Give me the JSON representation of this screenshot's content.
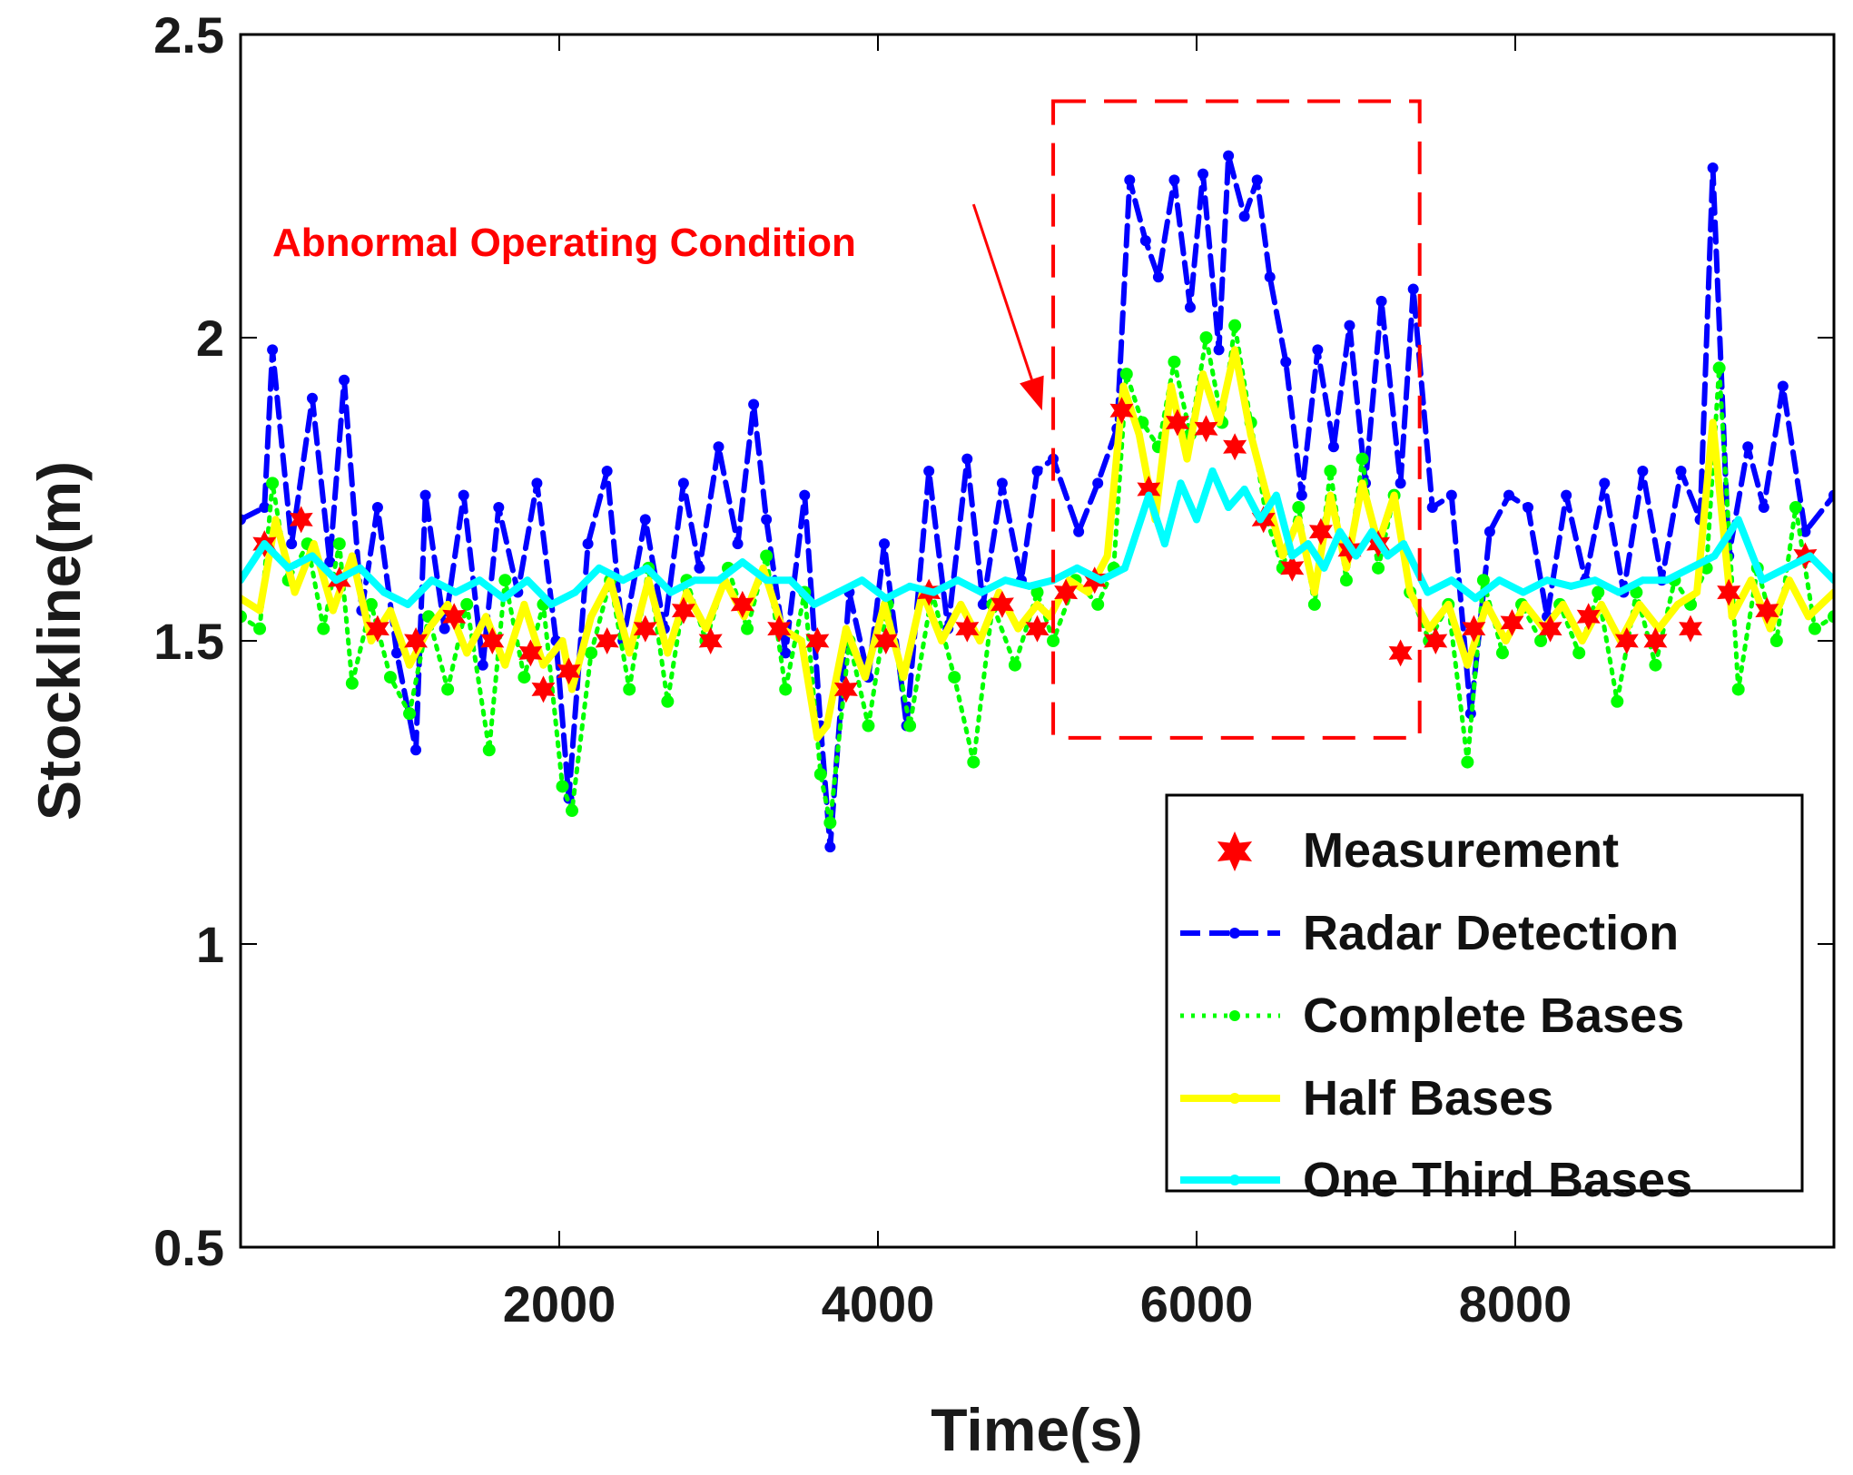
{
  "chart_data": {
    "type": "line",
    "title": "",
    "xlabel": "Time(s)",
    "ylabel": "Stockline(m)",
    "xlim": [
      0,
      10000
    ],
    "ylim": [
      0.5,
      2.5
    ],
    "xticks": [
      2000,
      4000,
      6000,
      8000
    ],
    "xtick_labels": [
      "2000",
      "4000",
      "6000",
      "8000"
    ],
    "yticks": [
      0.5,
      1,
      1.5,
      2,
      2.5
    ],
    "ytick_labels": [
      "0.5",
      "1",
      "1.5",
      "2",
      "2.5"
    ],
    "grid": false,
    "legend_position": "bottom-right",
    "annotation": {
      "text": "Abnormal Operating Condition",
      "color": "#ff0000",
      "box_x_range": [
        5100,
        7400
      ],
      "box_y_range": [
        1.34,
        2.39
      ],
      "arrow_tail": [
        4600,
        2.22
      ],
      "arrow_head": [
        5030,
        1.88
      ]
    },
    "series": [
      {
        "name": "Measurement",
        "color": "#ff0000",
        "style": "star",
        "x": [
          150,
          380,
          620,
          860,
          1100,
          1340,
          1580,
          1820,
          1900,
          2060,
          2300,
          2540,
          2780,
          2950,
          3150,
          3380,
          3620,
          3800,
          4050,
          4320,
          4560,
          4780,
          5000,
          5180,
          5360,
          5530,
          5700,
          5880,
          6060,
          6240,
          6420,
          6600,
          6780,
          6960,
          7140,
          7280,
          7500,
          7740,
          7980,
          8220,
          8460,
          8700,
          8880,
          9100,
          9340,
          9580,
          9820
        ],
        "values": [
          1.66,
          1.7,
          1.6,
          1.52,
          1.5,
          1.54,
          1.5,
          1.48,
          1.42,
          1.45,
          1.5,
          1.52,
          1.55,
          1.5,
          1.56,
          1.52,
          1.5,
          1.42,
          1.5,
          1.58,
          1.52,
          1.56,
          1.52,
          1.58,
          1.6,
          1.88,
          1.75,
          1.86,
          1.85,
          1.82,
          1.7,
          1.62,
          1.68,
          1.65,
          1.66,
          1.48,
          1.5,
          1.52,
          1.53,
          1.52,
          1.54,
          1.5,
          1.5,
          1.52,
          1.58,
          1.55,
          1.64
        ]
      },
      {
        "name": "Radar Detection",
        "color": "#0000ff",
        "style": "dash-dot-marker",
        "x": [
          0,
          150,
          200,
          320,
          450,
          560,
          650,
          760,
          860,
          980,
          1100,
          1160,
          1280,
          1400,
          1520,
          1620,
          1740,
          1860,
          1980,
          2060,
          2180,
          2300,
          2400,
          2540,
          2660,
          2780,
          2880,
          3000,
          3120,
          3220,
          3300,
          3420,
          3540,
          3640,
          3700,
          3820,
          3940,
          4040,
          4180,
          4320,
          4440,
          4560,
          4660,
          4780,
          4900,
          5000,
          5100,
          5260,
          5380,
          5500,
          5580,
          5680,
          5760,
          5860,
          5960,
          6040,
          6140,
          6200,
          6300,
          6380,
          6460,
          6560,
          6660,
          6760,
          6860,
          6960,
          7060,
          7160,
          7280,
          7360,
          7480,
          7600,
          7720,
          7840,
          7960,
          8080,
          8200,
          8320,
          8440,
          8560,
          8680,
          8800,
          8920,
          9040,
          9160,
          9240,
          9340,
          9460,
          9560,
          9680,
          9820,
          10000
        ],
        "values": [
          1.7,
          1.72,
          1.98,
          1.66,
          1.9,
          1.63,
          1.93,
          1.55,
          1.72,
          1.48,
          1.32,
          1.74,
          1.52,
          1.74,
          1.46,
          1.72,
          1.58,
          1.76,
          1.5,
          1.24,
          1.66,
          1.78,
          1.5,
          1.7,
          1.52,
          1.76,
          1.62,
          1.82,
          1.66,
          1.89,
          1.7,
          1.48,
          1.74,
          1.36,
          1.16,
          1.58,
          1.44,
          1.66,
          1.36,
          1.78,
          1.52,
          1.8,
          1.56,
          1.76,
          1.6,
          1.78,
          1.8,
          1.68,
          1.76,
          1.85,
          2.26,
          2.16,
          2.1,
          2.26,
          2.05,
          2.27,
          1.98,
          2.3,
          2.2,
          2.26,
          2.1,
          1.96,
          1.74,
          1.98,
          1.82,
          2.02,
          1.76,
          2.06,
          1.76,
          2.08,
          1.72,
          1.74,
          1.38,
          1.68,
          1.74,
          1.72,
          1.54,
          1.74,
          1.6,
          1.76,
          1.58,
          1.78,
          1.6,
          1.78,
          1.7,
          2.28,
          1.64,
          1.82,
          1.72,
          1.92,
          1.68,
          1.74
        ]
      },
      {
        "name": "Complete Bases",
        "color": "#00ff00",
        "style": "dotted-marker",
        "x": [
          0,
          120,
          200,
          300,
          420,
          520,
          620,
          700,
          820,
          940,
          1060,
          1180,
          1300,
          1420,
          1560,
          1660,
          1780,
          1900,
          2020,
          2080,
          2200,
          2320,
          2440,
          2560,
          2680,
          2800,
          2920,
          3060,
          3180,
          3300,
          3420,
          3540,
          3640,
          3700,
          3820,
          3940,
          4060,
          4200,
          4340,
          4480,
          4600,
          4720,
          4860,
          5000,
          5100,
          5240,
          5380,
          5480,
          5560,
          5660,
          5760,
          5860,
          5960,
          6060,
          6160,
          6240,
          6340,
          6440,
          6540,
          6640,
          6740,
          6840,
          6940,
          7040,
          7140,
          7240,
          7340,
          7460,
          7580,
          7700,
          7800,
          7920,
          8040,
          8160,
          8280,
          8400,
          8520,
          8640,
          8760,
          8880,
          9000,
          9100,
          9200,
          9280,
          9400,
          9520,
          9640,
          9760,
          9880,
          10000
        ],
        "values": [
          1.54,
          1.52,
          1.76,
          1.6,
          1.66,
          1.52,
          1.66,
          1.43,
          1.56,
          1.44,
          1.38,
          1.54,
          1.42,
          1.56,
          1.32,
          1.6,
          1.44,
          1.56,
          1.26,
          1.22,
          1.48,
          1.6,
          1.42,
          1.62,
          1.4,
          1.6,
          1.5,
          1.62,
          1.52,
          1.64,
          1.42,
          1.58,
          1.28,
          1.2,
          1.5,
          1.36,
          1.56,
          1.36,
          1.58,
          1.44,
          1.3,
          1.56,
          1.46,
          1.58,
          1.5,
          1.6,
          1.56,
          1.62,
          1.94,
          1.86,
          1.82,
          1.96,
          1.84,
          2.0,
          1.86,
          2.02,
          1.86,
          1.7,
          1.62,
          1.72,
          1.56,
          1.78,
          1.6,
          1.8,
          1.62,
          1.74,
          1.58,
          1.5,
          1.56,
          1.3,
          1.6,
          1.48,
          1.56,
          1.5,
          1.56,
          1.48,
          1.58,
          1.4,
          1.58,
          1.46,
          1.6,
          1.56,
          1.62,
          1.95,
          1.42,
          1.62,
          1.5,
          1.72,
          1.52,
          1.54
        ]
      },
      {
        "name": "Half Bases",
        "color": "#ffff00",
        "style": "solid-marker",
        "x": [
          0,
          120,
          220,
          340,
          460,
          580,
          700,
          820,
          940,
          1060,
          1180,
          1300,
          1420,
          1540,
          1660,
          1780,
          1900,
          2020,
          2080,
          2200,
          2320,
          2440,
          2560,
          2680,
          2800,
          2920,
          3040,
          3160,
          3280,
          3400,
          3520,
          3620,
          3680,
          3800,
          3920,
          4040,
          4160,
          4280,
          4400,
          4520,
          4640,
          4760,
          4880,
          5000,
          5080,
          5200,
          5320,
          5440,
          5540,
          5640,
          5740,
          5840,
          5940,
          6040,
          6140,
          6240,
          6340,
          6440,
          6540,
          6640,
          6740,
          6840,
          6940,
          7040,
          7140,
          7240,
          7340,
          7460,
          7580,
          7700,
          7820,
          7940,
          8060,
          8180,
          8300,
          8420,
          8540,
          8660,
          8780,
          8900,
          9020,
          9140,
          9240,
          9360,
          9480,
          9600,
          9720,
          9840,
          10000
        ],
        "values": [
          1.57,
          1.55,
          1.7,
          1.58,
          1.66,
          1.55,
          1.64,
          1.5,
          1.55,
          1.46,
          1.52,
          1.56,
          1.48,
          1.54,
          1.46,
          1.56,
          1.46,
          1.5,
          1.42,
          1.54,
          1.6,
          1.48,
          1.6,
          1.48,
          1.58,
          1.52,
          1.6,
          1.54,
          1.62,
          1.52,
          1.5,
          1.34,
          1.36,
          1.52,
          1.44,
          1.56,
          1.44,
          1.58,
          1.5,
          1.56,
          1.5,
          1.58,
          1.52,
          1.56,
          1.54,
          1.6,
          1.58,
          1.64,
          1.92,
          1.84,
          1.7,
          1.92,
          1.8,
          1.94,
          1.86,
          1.98,
          1.84,
          1.74,
          1.64,
          1.7,
          1.58,
          1.74,
          1.62,
          1.76,
          1.66,
          1.74,
          1.58,
          1.52,
          1.56,
          1.46,
          1.56,
          1.5,
          1.56,
          1.52,
          1.56,
          1.5,
          1.56,
          1.5,
          1.56,
          1.52,
          1.56,
          1.58,
          1.86,
          1.54,
          1.6,
          1.52,
          1.6,
          1.54,
          1.58
        ]
      },
      {
        "name": "One Third Bases",
        "color": "#00ffff",
        "style": "solid-marker",
        "x": [
          0,
          150,
          300,
          450,
          600,
          750,
          900,
          1050,
          1200,
          1350,
          1500,
          1650,
          1800,
          1950,
          2100,
          2250,
          2400,
          2550,
          2700,
          2850,
          3000,
          3150,
          3300,
          3450,
          3600,
          3750,
          3900,
          4050,
          4200,
          4350,
          4500,
          4650,
          4800,
          4950,
          5100,
          5250,
          5400,
          5550,
          5700,
          5800,
          5900,
          6000,
          6100,
          6200,
          6300,
          6400,
          6500,
          6600,
          6700,
          6800,
          6900,
          7000,
          7100,
          7200,
          7300,
          7450,
          7600,
          7750,
          7900,
          8050,
          8200,
          8350,
          8500,
          8650,
          8800,
          8950,
          9100,
          9250,
          9400,
          9550,
          9700,
          9850,
          10000
        ],
        "values": [
          1.6,
          1.66,
          1.62,
          1.64,
          1.6,
          1.62,
          1.58,
          1.56,
          1.6,
          1.58,
          1.6,
          1.57,
          1.6,
          1.56,
          1.58,
          1.62,
          1.6,
          1.62,
          1.58,
          1.6,
          1.6,
          1.63,
          1.6,
          1.6,
          1.56,
          1.58,
          1.6,
          1.57,
          1.59,
          1.58,
          1.6,
          1.58,
          1.6,
          1.59,
          1.6,
          1.62,
          1.6,
          1.62,
          1.74,
          1.66,
          1.76,
          1.7,
          1.78,
          1.72,
          1.75,
          1.7,
          1.74,
          1.64,
          1.66,
          1.62,
          1.68,
          1.64,
          1.68,
          1.64,
          1.66,
          1.58,
          1.6,
          1.57,
          1.6,
          1.58,
          1.6,
          1.59,
          1.6,
          1.58,
          1.6,
          1.6,
          1.62,
          1.64,
          1.7,
          1.6,
          1.62,
          1.64,
          1.6
        ]
      }
    ]
  }
}
